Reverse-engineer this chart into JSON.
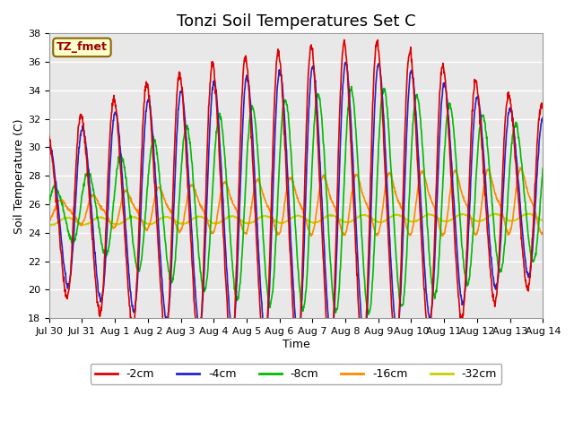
{
  "title": "Tonzi Soil Temperatures Set C",
  "xlabel": "Time",
  "ylabel": "Soil Temperature (C)",
  "ylim": [
    18,
    38
  ],
  "series_labels": [
    "-2cm",
    "-4cm",
    "-8cm",
    "-16cm",
    "-32cm"
  ],
  "series_colors": [
    "#dd0000",
    "#2222cc",
    "#00bb00",
    "#ff8800",
    "#cccc00"
  ],
  "series_linewidths": [
    1.2,
    1.2,
    1.2,
    1.2,
    1.2
  ],
  "xtick_labels": [
    "Jul 30",
    "Jul 31",
    "Aug 1",
    "Aug 2",
    "Aug 3",
    "Aug 4",
    "Aug 5",
    "Aug 6",
    "Aug 7",
    "Aug 8",
    "Aug 9",
    "Aug 10",
    "Aug 11",
    "Aug 12",
    "Aug 13",
    "Aug 14"
  ],
  "annotation_text": "TZ_fmet",
  "annotation_bbox_facecolor": "#ffffcc",
  "annotation_bbox_edgecolor": "#886600",
  "background_color": "#e8e8e8",
  "fig_background": "#ffffff",
  "title_fontsize": 13,
  "axis_label_fontsize": 9,
  "tick_fontsize": 8,
  "legend_fontsize": 9,
  "n_days": 15,
  "pts_per_day": 96
}
